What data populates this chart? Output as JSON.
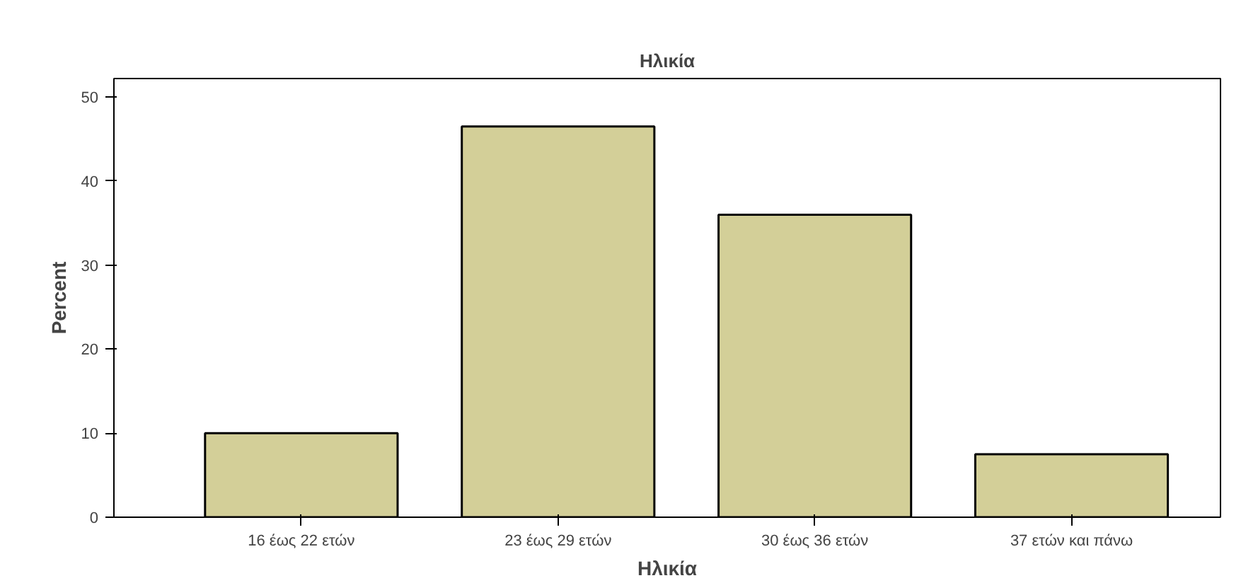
{
  "chart_data": {
    "type": "bar",
    "title": "Ηλικία",
    "xlabel": "Ηλικία",
    "ylabel": "Percent",
    "categories": [
      "16 έως 22 ετών",
      "23 έως 29 ετών",
      "30 έως 36 ετών",
      "37 ετών και πάνω"
    ],
    "values": [
      10,
      46.5,
      36,
      7.5
    ],
    "color": "#d3cf98",
    "ylim": [
      0,
      52.2
    ],
    "yticks": [
      0,
      10,
      20,
      30,
      40,
      50
    ],
    "grid": false
  }
}
